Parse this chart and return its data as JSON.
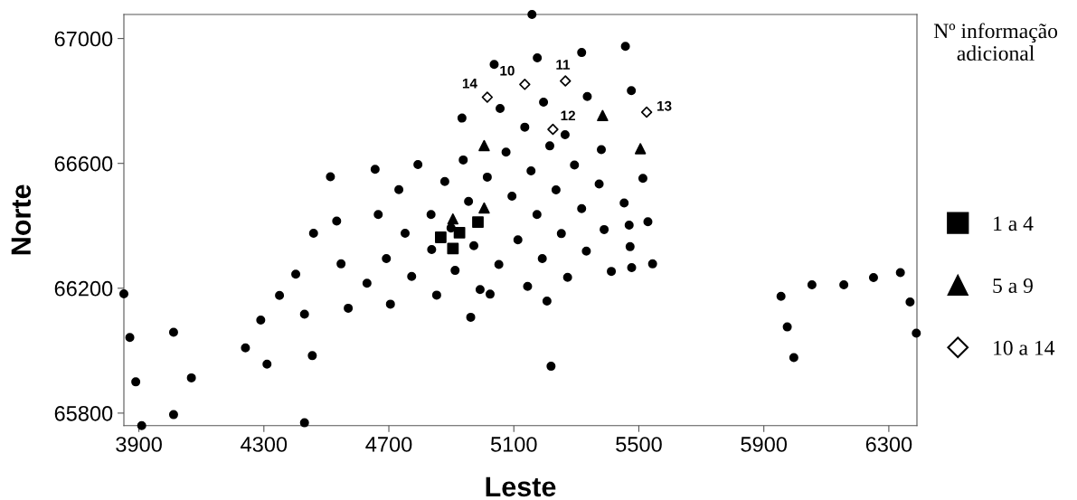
{
  "chart_data": {
    "type": "scatter",
    "xlabel": "Leste",
    "ylabel": "Norte",
    "legend_title": "Nº informação\nadicional",
    "xlim": [
      3852,
      6390
    ],
    "ylim": [
      65760,
      67077
    ],
    "xticks": [
      3900,
      4300,
      4700,
      5100,
      5500,
      5900,
      6300
    ],
    "yticks": [
      65800,
      66200,
      66600,
      67000
    ],
    "grid": false,
    "legend": "right",
    "series": [
      {
        "marker": "circle",
        "color": "#000000",
        "x": [
          4513,
          4656,
          4666,
          4533,
          4459,
          5158,
          5457,
          5317,
          5175,
          5037,
          5476,
          5335,
          5195,
          5056,
          4934,
          5135,
          5264,
          5215,
          5075,
          5380,
          4938,
          4793,
          5294,
          5155,
          5015,
          4879,
          5513,
          4732,
          5373,
          5235,
          5094,
          4955,
          5453,
          4835,
          5174,
          5317,
          4899,
          4752,
          5252,
          5389,
          5469,
          5529,
          5113,
          4972,
          4837,
          5332,
          5472,
          4692,
          5052,
          5191,
          4630,
          4773,
          4912,
          5272,
          5412,
          5477,
          5544,
          4705,
          4853,
          4992,
          5024,
          5144,
          5206,
          4962,
          5219,
          3852,
          3871,
          3890,
          3909,
          4011,
          4011,
          4068,
          4241,
          4290,
          4310,
          4350,
          4402,
          4430,
          4455,
          4430,
          4547,
          4570,
          5955,
          5975,
          5996,
          6054,
          6156,
          6251,
          6337,
          6368,
          6388
        ],
        "values": [
          66557,
          66581,
          66436,
          66415,
          66376,
          67077,
          66975,
          66955,
          66938,
          66917,
          66833,
          66814,
          66796,
          66776,
          66745,
          66716,
          66692,
          66656,
          66636,
          66644,
          66611,
          66596,
          66595,
          66576,
          66556,
          66542,
          66552,
          66516,
          66534,
          66515,
          66495,
          66478,
          66473,
          66436,
          66436,
          66455,
          66393,
          66376,
          66375,
          66388,
          66402,
          66413,
          66355,
          66336,
          66324,
          66319,
          66333,
          66295,
          66276,
          66295,
          66216,
          66238,
          66257,
          66235,
          66254,
          66266,
          66278,
          66149,
          66178,
          66196,
          66181,
          66206,
          66159,
          66107,
          65950,
          66182,
          66042,
          65900,
          65760,
          66059,
          65795,
          65913,
          66009,
          66098,
          65957,
          66177,
          66245,
          66117,
          65984,
          65769,
          66278,
          66136,
          66174,
          66076,
          65978,
          66211,
          66211,
          66234,
          66250,
          66156,
          66056
        ]
      },
      {
        "name": "1 a 4",
        "marker": "square",
        "color": "#000000",
        "x": [
          4985,
          4926,
          4866,
          4905
        ],
        "values": [
          66412,
          66378,
          66363,
          66327
        ]
      },
      {
        "name": "5 a 9",
        "marker": "triangle",
        "color": "#000000",
        "x": [
          5384,
          5005,
          5505,
          5005,
          4905
        ],
        "values": [
          66753,
          66657,
          66647,
          66457,
          66422
        ]
      },
      {
        "name": "10 a 14",
        "marker": "diamond",
        "color": "#ffffff",
        "x": [
          5135,
          5265,
          5225,
          5525,
          5015
        ],
        "values": [
          66853,
          66864,
          66709,
          66764,
          66812
        ]
      }
    ],
    "annotations": [
      {
        "text": "10",
        "x": 5135,
        "y": 66853
      },
      {
        "text": "11",
        "x": 5265,
        "y": 66864
      },
      {
        "text": "12",
        "x": 5225,
        "y": 66709
      },
      {
        "text": "13",
        "x": 5525,
        "y": 66764
      },
      {
        "text": "14",
        "x": 5015,
        "y": 66812
      }
    ]
  }
}
